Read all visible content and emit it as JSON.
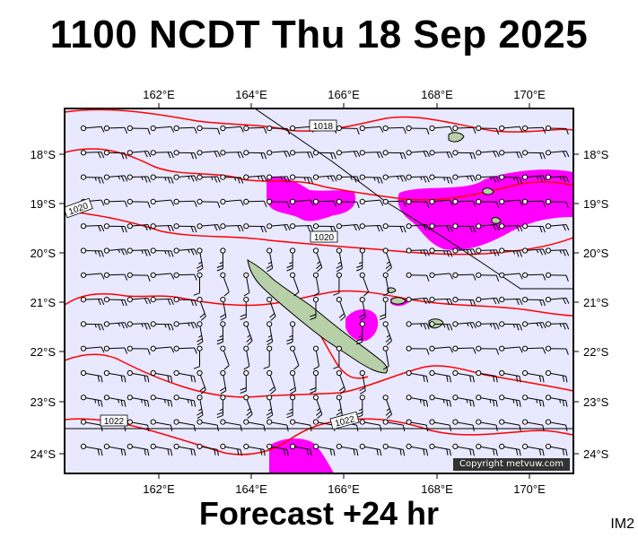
{
  "title": "1100 NCDT Thu 18 Sep 2025",
  "subtitle": "Forecast +24 hr",
  "corner_label": "IM2",
  "copyright": "Copyright metvuw.com",
  "colors": {
    "ocean": "#e8e8ff",
    "isobar": "#ff0000",
    "rain": "#ff00ff",
    "land": "#b8d0a8",
    "frame": "#000000"
  },
  "axes": {
    "lon_ticks": [
      "162°E",
      "164°E",
      "166°E",
      "168°E",
      "170°E"
    ],
    "lat_ticks": [
      "18°S",
      "19°S",
      "20°S",
      "21°S",
      "22°S",
      "23°S",
      "24°S"
    ]
  },
  "isobar_labels": [
    "1018",
    "1020",
    "1020",
    "1022",
    "1022"
  ]
}
